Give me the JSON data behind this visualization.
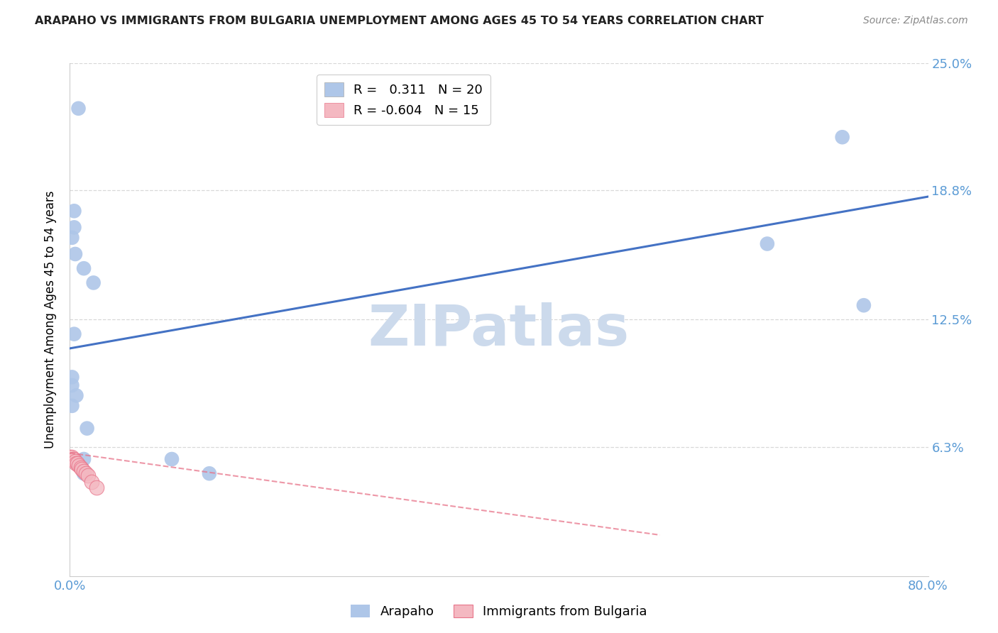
{
  "title": "ARAPAHO VS IMMIGRANTS FROM BULGARIA UNEMPLOYMENT AMONG AGES 45 TO 54 YEARS CORRELATION CHART",
  "source": "Source: ZipAtlas.com",
  "xlabel": "",
  "ylabel": "Unemployment Among Ages 45 to 54 years",
  "xlim": [
    0.0,
    0.8
  ],
  "ylim": [
    0.0,
    0.25
  ],
  "ytick_labels": [
    "",
    "6.3%",
    "12.5%",
    "18.8%",
    "25.0%"
  ],
  "ytick_values": [
    0.0,
    0.063,
    0.125,
    0.188,
    0.25
  ],
  "xtick_vals": [
    0.0,
    0.1,
    0.2,
    0.3,
    0.4,
    0.5,
    0.6,
    0.7,
    0.8
  ],
  "arapaho_R": 0.311,
  "arapaho_N": 20,
  "bulgaria_R": -0.604,
  "bulgaria_N": 15,
  "arapaho_color": "#aec6e8",
  "arapaho_line_color": "#4472c4",
  "bulgaria_color": "#f4b8c1",
  "bulgaria_line_color": "#e8748a",
  "arapaho_scatter": [
    [
      0.008,
      0.228
    ],
    [
      0.004,
      0.178
    ],
    [
      0.004,
      0.17
    ],
    [
      0.002,
      0.165
    ],
    [
      0.005,
      0.157
    ],
    [
      0.013,
      0.15
    ],
    [
      0.022,
      0.143
    ],
    [
      0.004,
      0.118
    ],
    [
      0.002,
      0.097
    ],
    [
      0.002,
      0.093
    ],
    [
      0.006,
      0.088
    ],
    [
      0.002,
      0.083
    ],
    [
      0.016,
      0.072
    ],
    [
      0.013,
      0.057
    ],
    [
      0.013,
      0.05
    ],
    [
      0.095,
      0.057
    ],
    [
      0.13,
      0.05
    ],
    [
      0.65,
      0.162
    ],
    [
      0.72,
      0.214
    ],
    [
      0.74,
      0.132
    ]
  ],
  "bulgaria_scatter": [
    [
      0.0,
      0.058
    ],
    [
      0.002,
      0.058
    ],
    [
      0.003,
      0.057
    ],
    [
      0.004,
      0.057
    ],
    [
      0.005,
      0.056
    ],
    [
      0.006,
      0.055
    ],
    [
      0.007,
      0.055
    ],
    [
      0.008,
      0.054
    ],
    [
      0.01,
      0.053
    ],
    [
      0.011,
      0.052
    ],
    [
      0.013,
      0.051
    ],
    [
      0.015,
      0.05
    ],
    [
      0.017,
      0.049
    ],
    [
      0.02,
      0.046
    ],
    [
      0.025,
      0.043
    ]
  ],
  "arapaho_line": [
    [
      0.0,
      0.111
    ],
    [
      0.8,
      0.185
    ]
  ],
  "bulgaria_line": [
    [
      0.0,
      0.06
    ],
    [
      0.55,
      0.02
    ]
  ],
  "background_color": "#ffffff",
  "grid_color": "#d8d8d8",
  "watermark": "ZIPatlas",
  "watermark_color": "#ccdaec"
}
